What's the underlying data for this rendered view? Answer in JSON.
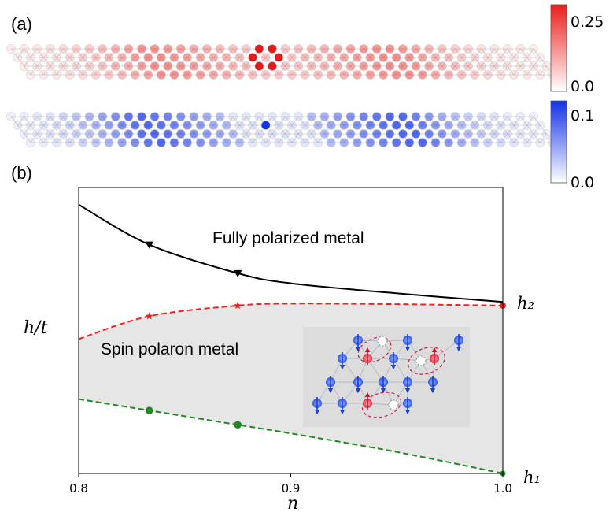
{
  "panel_a": {
    "label": "(a)",
    "colorbar_top": {
      "max_label": "0.25",
      "min_label": "0.0",
      "max_value": 0.25,
      "min_value": 0.0,
      "color": "#e8201c"
    },
    "colorbar_bottom": {
      "max_label": "0.1",
      "min_label": "0.0",
      "max_value": 0.1,
      "min_value": 0.0,
      "color": "#1432e6"
    }
  },
  "panel_b": {
    "label": "(b)",
    "region_labels": {
      "upper": "Fully polarized metal",
      "lower": "Spin polaron metal"
    },
    "boundary_labels": {
      "h2": "h₂",
      "h1": "h₁"
    }
  },
  "chart_data": {
    "type": "line",
    "xlabel": "n",
    "ylabel": "h/t",
    "xlim": [
      0.8,
      1.0
    ],
    "xticks": [
      0.8,
      0.9,
      1.0
    ],
    "xtick_labels": [
      "0.8",
      "0.9",
      "1.0"
    ],
    "ylim": [
      0,
      1
    ],
    "y_ticks_shown": false,
    "grid": false,
    "series": [
      {
        "color": "#000000",
        "marker": "triangle-down",
        "style": "solid",
        "x": [
          0.8,
          0.8333,
          0.875,
          0.9,
          0.95,
          1.0
        ],
        "y": [
          0.94,
          0.8,
          0.7,
          0.665,
          0.63,
          0.6
        ]
      },
      {
        "color": "#e8261f",
        "marker": "star",
        "style": "dashed",
        "upper_edge_of_shaded": true,
        "x": [
          0.8,
          0.8333,
          0.875,
          0.9,
          0.95,
          1.0
        ],
        "y": [
          0.47,
          0.55,
          0.587,
          0.594,
          0.592,
          0.587
        ]
      },
      {
        "color": "#1f8a1f",
        "marker": "circle",
        "style": "dashed",
        "lower_edge_of_shaded": true,
        "x": [
          0.8,
          0.8333,
          0.875,
          0.9,
          0.95,
          1.0
        ],
        "y": [
          0.26,
          0.22,
          0.17,
          0.14,
          0.075,
          0.0
        ]
      }
    ],
    "shaded_region": {
      "between": [
        "red",
        "green"
      ],
      "color": "#e6e6e6"
    }
  }
}
